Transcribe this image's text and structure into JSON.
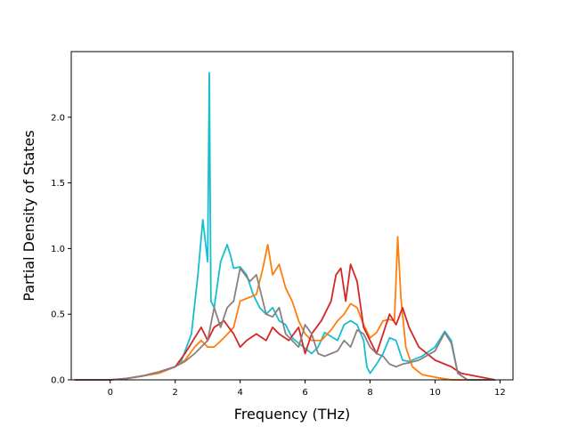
{
  "chart_data": {
    "type": "line",
    "title": "",
    "xlabel": "Frequency (THz)",
    "ylabel": "Partial Density of States",
    "xlim": [
      -1.2,
      12.4
    ],
    "ylim": [
      0,
      2.5
    ],
    "xticks": [
      "0",
      "2",
      "4",
      "6",
      "8",
      "10",
      "12"
    ],
    "xtick_values": [
      0,
      2,
      4,
      6,
      8,
      10,
      12
    ],
    "yticks": [
      "0.0",
      "0.5",
      "1.0",
      "1.5",
      "2.0"
    ],
    "ytick_values": [
      0,
      0.5,
      1.0,
      1.5,
      2.0
    ],
    "grid": false,
    "legend": "none",
    "series": [
      {
        "color": "#17becf",
        "x": [
          -1.1,
          0,
          0.5,
          1.0,
          1.5,
          2.0,
          2.2,
          2.5,
          2.7,
          2.85,
          3.0,
          3.05,
          3.1,
          3.2,
          3.4,
          3.6,
          3.7,
          3.8,
          4.0,
          4.2,
          4.4,
          4.6,
          4.8,
          5.0,
          5.2,
          5.4,
          5.6,
          5.8,
          6.0,
          6.2,
          6.4,
          6.6,
          6.8,
          7.0,
          7.2,
          7.4,
          7.6,
          7.8,
          7.9,
          8.0,
          8.2,
          8.4,
          8.6,
          8.8,
          9.0,
          9.2,
          9.6,
          10.0,
          10.3,
          10.5,
          10.7,
          11.0,
          11.85
        ],
        "y": [
          0,
          0,
          0.01,
          0.03,
          0.06,
          0.1,
          0.15,
          0.35,
          0.8,
          1.22,
          0.9,
          2.34,
          0.6,
          0.55,
          0.9,
          1.03,
          0.95,
          0.85,
          0.86,
          0.8,
          0.65,
          0.55,
          0.5,
          0.55,
          0.45,
          0.42,
          0.32,
          0.28,
          0.24,
          0.2,
          0.25,
          0.36,
          0.33,
          0.3,
          0.42,
          0.45,
          0.42,
          0.3,
          0.1,
          0.05,
          0.12,
          0.2,
          0.32,
          0.3,
          0.15,
          0.14,
          0.18,
          0.25,
          0.37,
          0.3,
          0.05,
          0,
          0
        ]
      },
      {
        "color": "#ff7f0e",
        "x": [
          -1.1,
          0,
          0.5,
          1.0,
          1.5,
          2.0,
          2.3,
          2.6,
          2.8,
          3.0,
          3.2,
          3.5,
          3.8,
          4.0,
          4.2,
          4.5,
          4.7,
          4.85,
          5.0,
          5.2,
          5.4,
          5.6,
          5.8,
          6.0,
          6.2,
          6.5,
          6.8,
          7.0,
          7.2,
          7.4,
          7.6,
          7.8,
          8.0,
          8.2,
          8.4,
          8.6,
          8.75,
          8.85,
          8.95,
          9.1,
          9.3,
          9.6,
          10.0,
          10.5,
          11.85
        ],
        "y": [
          0,
          0,
          0.01,
          0.03,
          0.05,
          0.1,
          0.15,
          0.25,
          0.3,
          0.25,
          0.25,
          0.32,
          0.4,
          0.6,
          0.62,
          0.65,
          0.85,
          1.03,
          0.8,
          0.88,
          0.7,
          0.6,
          0.45,
          0.35,
          0.3,
          0.3,
          0.38,
          0.45,
          0.5,
          0.58,
          0.55,
          0.42,
          0.32,
          0.36,
          0.45,
          0.46,
          0.45,
          1.09,
          0.62,
          0.25,
          0.1,
          0.04,
          0.02,
          0,
          0
        ]
      },
      {
        "color": "#d62728",
        "x": [
          -1.1,
          0,
          0.5,
          1.0,
          1.5,
          2.0,
          2.3,
          2.6,
          2.8,
          3.0,
          3.2,
          3.5,
          3.8,
          4.0,
          4.2,
          4.5,
          4.8,
          5.0,
          5.2,
          5.5,
          5.8,
          6.0,
          6.2,
          6.5,
          6.8,
          6.95,
          7.1,
          7.25,
          7.4,
          7.6,
          7.8,
          8.0,
          8.2,
          8.4,
          8.6,
          8.8,
          9.0,
          9.2,
          9.5,
          10.0,
          10.5,
          10.8,
          11.85
        ],
        "y": [
          0,
          0,
          0.01,
          0.03,
          0.06,
          0.1,
          0.2,
          0.32,
          0.4,
          0.3,
          0.4,
          0.45,
          0.35,
          0.25,
          0.3,
          0.35,
          0.3,
          0.4,
          0.35,
          0.3,
          0.4,
          0.2,
          0.35,
          0.45,
          0.6,
          0.8,
          0.85,
          0.6,
          0.88,
          0.75,
          0.4,
          0.3,
          0.2,
          0.35,
          0.5,
          0.42,
          0.55,
          0.4,
          0.25,
          0.15,
          0.1,
          0.05,
          0
        ]
      },
      {
        "color": "#8c7f7f",
        "x": [
          -1.1,
          0,
          0.5,
          1.0,
          1.5,
          2.0,
          2.3,
          2.6,
          2.8,
          3.0,
          3.2,
          3.4,
          3.6,
          3.8,
          4.0,
          4.3,
          4.5,
          4.8,
          5.0,
          5.2,
          5.4,
          5.6,
          5.8,
          6.0,
          6.2,
          6.4,
          6.6,
          6.8,
          7.0,
          7.2,
          7.4,
          7.6,
          7.8,
          8.0,
          8.2,
          8.4,
          8.6,
          8.8,
          9.0,
          9.2,
          9.5,
          10.0,
          10.3,
          10.5,
          10.7,
          11.0,
          11.85
        ],
        "y": [
          0,
          0,
          0.01,
          0.03,
          0.06,
          0.1,
          0.14,
          0.2,
          0.25,
          0.3,
          0.55,
          0.4,
          0.55,
          0.6,
          0.85,
          0.75,
          0.8,
          0.5,
          0.48,
          0.55,
          0.35,
          0.3,
          0.25,
          0.42,
          0.35,
          0.2,
          0.18,
          0.2,
          0.22,
          0.3,
          0.25,
          0.38,
          0.35,
          0.25,
          0.2,
          0.18,
          0.12,
          0.1,
          0.12,
          0.13,
          0.15,
          0.22,
          0.36,
          0.28,
          0.05,
          0,
          0
        ]
      }
    ]
  }
}
